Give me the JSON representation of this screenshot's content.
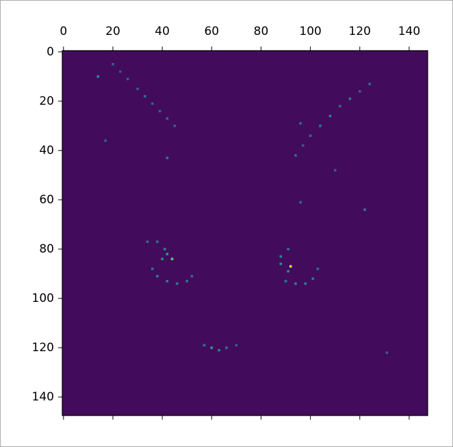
{
  "chart_data": {
    "type": "heatmap",
    "xlim": [
      -0.5,
      147.5
    ],
    "ylim": [
      147.5,
      -0.5
    ],
    "xticks": [
      0,
      20,
      40,
      60,
      80,
      100,
      120,
      140
    ],
    "yticks": [
      0,
      20,
      40,
      60,
      80,
      100,
      120,
      140
    ],
    "colormap": "viridis",
    "clim": [
      0,
      1
    ],
    "background_value": 0.03,
    "x": [
      20,
      23,
      26,
      30,
      33,
      36,
      39,
      42,
      45,
      124,
      120,
      116,
      112,
      108,
      104,
      100,
      97,
      94,
      34,
      38,
      41,
      40,
      36,
      38,
      42,
      46,
      50,
      52,
      44,
      42,
      91,
      88,
      88,
      92,
      91,
      90,
      94,
      98,
      101,
      103,
      57,
      60,
      63,
      66,
      70,
      14,
      17,
      42,
      96,
      122,
      96,
      110,
      131
    ],
    "y": [
      5,
      8,
      11,
      15,
      18,
      21,
      24,
      27,
      30,
      13,
      16,
      19,
      22,
      26,
      30,
      34,
      38,
      42,
      77,
      77,
      80,
      84,
      88,
      91,
      93,
      94,
      93,
      91,
      84,
      82,
      80,
      83,
      86,
      87,
      89,
      93,
      94,
      94,
      92,
      88,
      119,
      120,
      121,
      120,
      119,
      10,
      36,
      43,
      29,
      64,
      61,
      48,
      122
    ],
    "values": [
      0.3,
      0.25,
      0.3,
      0.3,
      0.35,
      0.3,
      0.3,
      0.35,
      0.3,
      0.35,
      0.3,
      0.4,
      0.35,
      0.45,
      0.4,
      0.35,
      0.3,
      0.35,
      0.35,
      0.4,
      0.45,
      0.5,
      0.4,
      0.45,
      0.45,
      0.4,
      0.4,
      0.35,
      0.75,
      0.55,
      0.4,
      0.45,
      0.5,
      0.95,
      0.5,
      0.4,
      0.45,
      0.45,
      0.4,
      0.35,
      0.4,
      0.55,
      0.45,
      0.4,
      0.3,
      0.5,
      0.3,
      0.4,
      0.35,
      0.4,
      0.35,
      0.3,
      0.3
    ]
  }
}
